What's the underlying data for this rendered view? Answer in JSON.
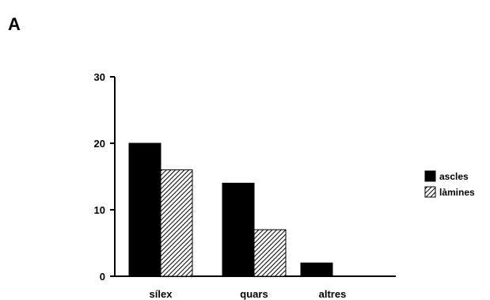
{
  "panel_label": "A",
  "chart_data": {
    "type": "bar",
    "categories": [
      "sílex",
      "quars",
      "altres"
    ],
    "series": [
      {
        "name": "ascles",
        "values": [
          20,
          14,
          2
        ],
        "fill": "solid",
        "color": "#000000"
      },
      {
        "name": "làmines",
        "values": [
          16,
          7,
          0
        ],
        "fill": "hatched",
        "color": "#000000"
      }
    ],
    "yticks": [
      0,
      10,
      20,
      30
    ],
    "ylim": [
      0,
      30
    ],
    "title": "",
    "xlabel": "",
    "ylabel": "",
    "grid": false,
    "legend_position": "right"
  }
}
